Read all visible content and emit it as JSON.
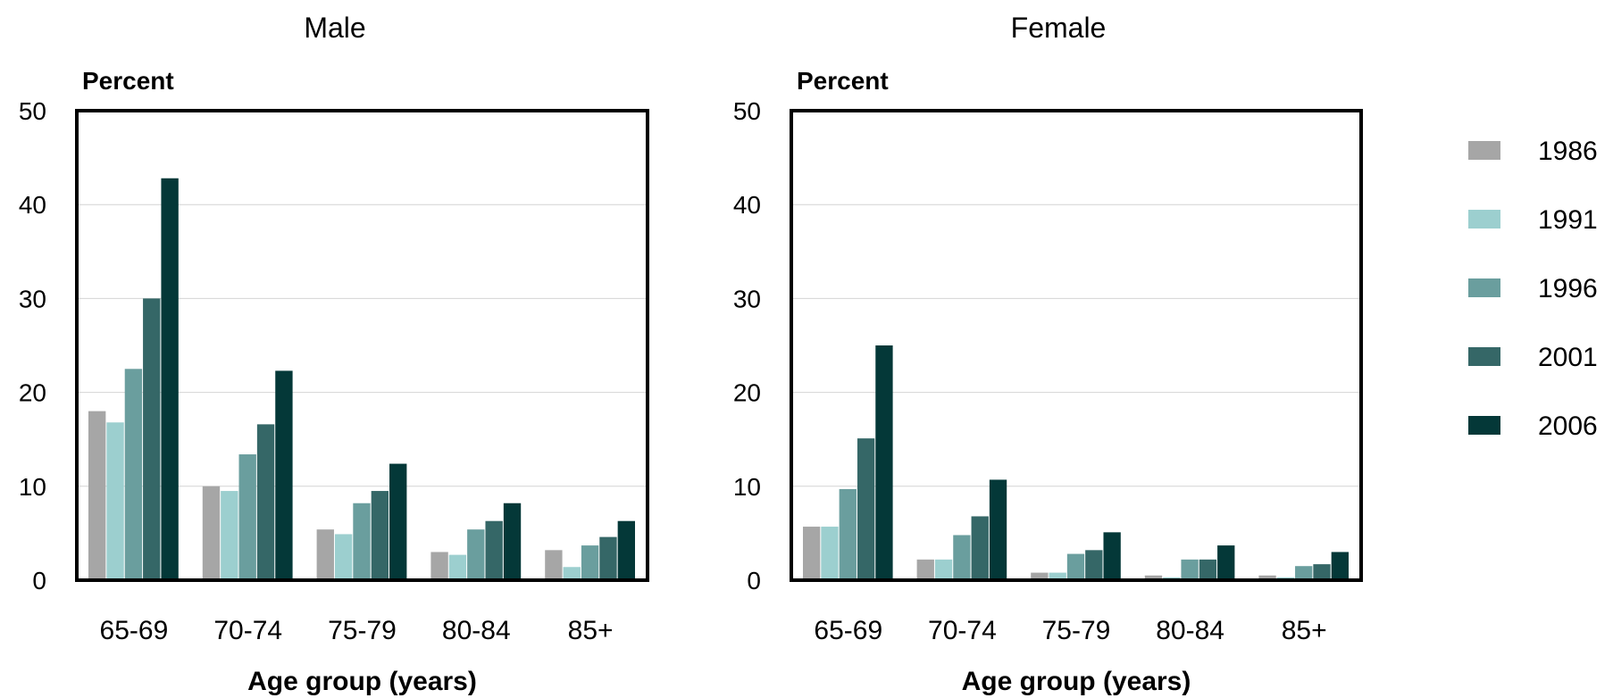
{
  "chart_data": [
    {
      "type": "bar",
      "title": "Male",
      "ylabel": "Percent",
      "xlabel": "Age group (years)",
      "categories": [
        "65-69",
        "70-74",
        "75-79",
        "80-84",
        "85+"
      ],
      "yticks": [
        "0",
        "10",
        "20",
        "30",
        "40",
        "50"
      ],
      "ylim": [
        0,
        50
      ],
      "grid": true,
      "series": [
        {
          "name": "1986",
          "values": [
            18.0,
            10.0,
            5.4,
            3.0,
            3.2
          ]
        },
        {
          "name": "1991",
          "values": [
            16.8,
            9.5,
            4.9,
            2.7,
            1.4
          ]
        },
        {
          "name": "1996",
          "values": [
            22.5,
            13.4,
            8.2,
            5.4,
            3.7
          ]
        },
        {
          "name": "2001",
          "values": [
            30.0,
            16.6,
            9.5,
            6.3,
            4.6
          ]
        },
        {
          "name": "2006",
          "values": [
            42.8,
            22.3,
            12.4,
            8.2,
            6.3
          ]
        }
      ]
    },
    {
      "type": "bar",
      "title": "Female",
      "ylabel": "Percent",
      "xlabel": "Age group (years)",
      "categories": [
        "65-69",
        "70-74",
        "75-79",
        "80-84",
        "85+"
      ],
      "yticks": [
        "0",
        "10",
        "20",
        "30",
        "40",
        "50"
      ],
      "ylim": [
        0,
        50
      ],
      "grid": true,
      "series": [
        {
          "name": "1986",
          "values": [
            5.7,
            2.2,
            0.8,
            0.5,
            0.5
          ]
        },
        {
          "name": "1991",
          "values": [
            5.7,
            2.2,
            0.8,
            0.3,
            0.3
          ]
        },
        {
          "name": "1996",
          "values": [
            9.7,
            4.8,
            2.8,
            2.2,
            1.5
          ]
        },
        {
          "name": "2001",
          "values": [
            15.1,
            6.8,
            3.2,
            2.2,
            1.7
          ]
        },
        {
          "name": "2006",
          "values": [
            25.0,
            10.7,
            5.1,
            3.7,
            3.0
          ]
        }
      ]
    }
  ],
  "legend": {
    "placement": "right",
    "items": [
      {
        "label": "1986",
        "color": "#a6a6a6"
      },
      {
        "label": "1991",
        "color": "#9ccfcf"
      },
      {
        "label": "1996",
        "color": "#6a9e9e"
      },
      {
        "label": "2001",
        "color": "#356767"
      },
      {
        "label": "2006",
        "color": "#043838"
      }
    ]
  }
}
